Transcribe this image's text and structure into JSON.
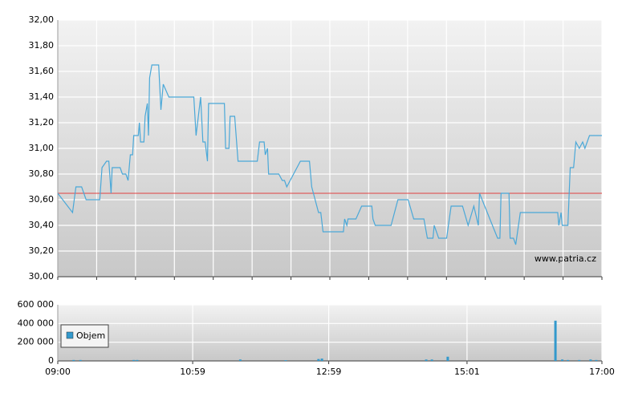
{
  "chart_data": [
    {
      "type": "line",
      "watermark": "www.patria.cz",
      "color": "#4aa8d8",
      "grid": true,
      "ylim": [
        30,
        32
      ],
      "yticks": [
        {
          "value": 30,
          "label": "30,00"
        },
        {
          "value": 30.2,
          "label": "30,20"
        },
        {
          "value": 30.4,
          "label": "30,40"
        },
        {
          "value": 30.6,
          "label": "30,60"
        },
        {
          "value": 30.8,
          "label": "30,80"
        },
        {
          "value": 31,
          "label": "31,00"
        },
        {
          "value": 31.2,
          "label": "31,20"
        },
        {
          "value": 31.4,
          "label": "31,40"
        },
        {
          "value": 31.6,
          "label": "31,60"
        },
        {
          "value": 31.8,
          "label": "31,80"
        },
        {
          "value": 32,
          "label": "32,00"
        }
      ],
      "xlim": [
        "09:00",
        "17:00"
      ],
      "reference_line": 30.65,
      "reference_color": "#e04040",
      "x": [
        "09:00",
        "09:13",
        "09:16",
        "09:21",
        "09:25",
        "09:37",
        "09:39",
        "09:43",
        "09:45",
        "09:47",
        "09:48",
        "09:55",
        "09:57",
        "10:00",
        "10:02",
        "10:04",
        "10:06",
        "10:07",
        "10:11",
        "10:12",
        "10:13",
        "10:16",
        "10:17",
        "10:19",
        "10:20",
        "10:21",
        "10:23",
        "10:29",
        "10:31",
        "10:33",
        "10:38",
        "11:00",
        "11:02",
        "11:06",
        "11:08",
        "11:10",
        "11:12",
        "11:13",
        "11:27",
        "11:28",
        "11:31",
        "11:32",
        "11:36",
        "11:39",
        "11:56",
        "11:58",
        "12:02",
        "12:03",
        "12:05",
        "12:06",
        "12:15",
        "12:18",
        "12:20",
        "12:22",
        "12:34",
        "12:42",
        "12:44",
        "12:50",
        "12:52",
        "12:54",
        "13:12",
        "13:13",
        "13:15",
        "13:16",
        "13:23",
        "13:28",
        "13:37",
        "13:38",
        "13:40",
        "13:54",
        "14:00",
        "14:09",
        "14:14",
        "14:23",
        "14:26",
        "14:31",
        "14:32",
        "14:36",
        "14:43",
        "14:47",
        "14:57",
        "15:02",
        "15:07",
        "15:11",
        "15:12",
        "15:28",
        "15:30",
        "15:31",
        "15:38",
        "15:39",
        "15:42",
        "15:44",
        "15:48",
        "16:21",
        "16:22",
        "16:24",
        "16:25",
        "16:30",
        "16:32",
        "16:35",
        "16:37",
        "16:40",
        "16:43",
        "16:45",
        "16:49",
        "17:00"
      ],
      "values": [
        30.65,
        30.5,
        30.7,
        30.7,
        30.6,
        30.6,
        30.85,
        30.9,
        30.9,
        30.65,
        30.85,
        30.85,
        30.8,
        30.8,
        30.75,
        30.95,
        30.95,
        31.1,
        31.1,
        31.2,
        31.05,
        31.05,
        31.25,
        31.35,
        31.1,
        31.55,
        31.65,
        31.65,
        31.3,
        31.5,
        31.4,
        31.4,
        31.1,
        31.4,
        31.05,
        31.05,
        30.9,
        31.35,
        31.35,
        31.0,
        31.0,
        31.25,
        31.25,
        30.9,
        30.9,
        31.05,
        31.05,
        30.95,
        31.0,
        30.8,
        30.8,
        30.75,
        30.75,
        30.7,
        30.9,
        30.9,
        30.7,
        30.5,
        30.5,
        30.35,
        30.35,
        30.45,
        30.4,
        30.45,
        30.45,
        30.55,
        30.55,
        30.45,
        30.4,
        30.4,
        30.6,
        30.6,
        30.45,
        30.45,
        30.3,
        30.3,
        30.4,
        30.3,
        30.3,
        30.55,
        30.55,
        30.4,
        30.55,
        30.4,
        30.65,
        30.3,
        30.3,
        30.65,
        30.65,
        30.3,
        30.3,
        30.25,
        30.5,
        30.5,
        30.4,
        30.5,
        30.4,
        30.4,
        30.85,
        30.85,
        31.05,
        31.0,
        31.05,
        31.0,
        31.1,
        31.1
      ]
    },
    {
      "type": "bar",
      "grid": true,
      "ylim": [
        0,
        600000
      ],
      "yticks": [
        0,
        {
          "value": 200000,
          "label": "200 000"
        },
        {
          "value": 400000,
          "label": "400 000"
        },
        {
          "value": 600000,
          "label": "600 000"
        }
      ],
      "xlim": [
        "09:00",
        "17:00"
      ],
      "xticks": [
        "09:00",
        "10:59",
        "12:59",
        "15:01",
        "17:00"
      ],
      "x": [
        "09:14",
        "09:20",
        "10:07",
        "10:10",
        "11:41",
        "12:21",
        "12:50",
        "12:53",
        "14:25",
        "14:30",
        "14:44",
        "16:19",
        "16:25",
        "16:30",
        "16:40",
        "16:50",
        "16:55"
      ],
      "series": [
        {
          "name": "Objem",
          "color": "#3399cc",
          "values": [
            10000,
            10000,
            10000,
            10000,
            15000,
            8000,
            20000,
            25000,
            15000,
            15000,
            45000,
            430000,
            15000,
            10000,
            10000,
            15000,
            10000
          ]
        }
      ]
    }
  ]
}
